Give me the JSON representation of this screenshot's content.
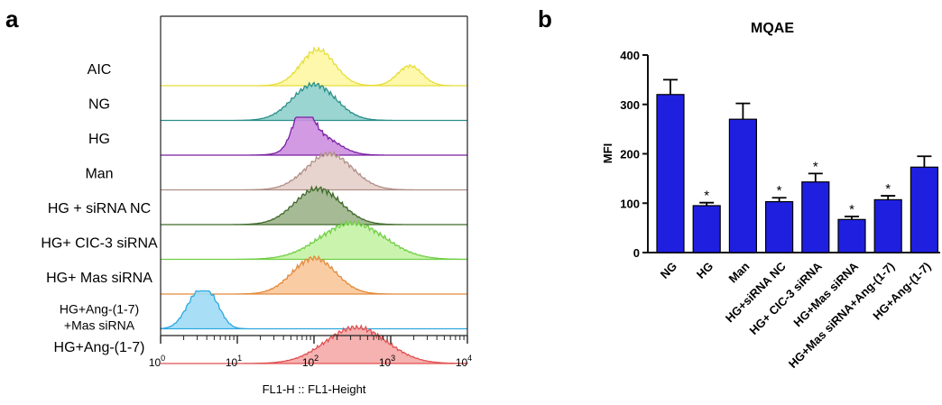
{
  "panel_a": {
    "letter": "a",
    "xlabel": "FL1-H :: FL1-Height",
    "xticks": [
      {
        "base": "10",
        "exp": "0",
        "value": 1
      },
      {
        "base": "10",
        "exp": "1",
        "value": 10
      },
      {
        "base": "10",
        "exp": "2",
        "value": 100
      },
      {
        "base": "10",
        "exp": "3",
        "value": 1000
      },
      {
        "base": "10",
        "exp": "4",
        "value": 10000
      }
    ],
    "samples": [
      {
        "label": "AIC",
        "fill": "#fdf7a2",
        "stroke": "#e6de3a"
      },
      {
        "label": "NG",
        "fill": "#8fd0cd",
        "stroke": "#2a8f8a"
      },
      {
        "label": "HG",
        "fill": "#cc8fe0",
        "stroke": "#7a1fa2"
      },
      {
        "label": "Man",
        "fill": "#e6cfca",
        "stroke": "#b08f88"
      },
      {
        "label": "HG + siRNA NC",
        "fill": "#9cb38a",
        "stroke": "#3f6a2a"
      },
      {
        "label": "HG+ CIC-3 siRNA",
        "fill": "#c4f3a5",
        "stroke": "#70cf45"
      },
      {
        "label": "HG+ Mas siRNA",
        "fill": "#f9c79a",
        "stroke": "#e48a3a"
      },
      {
        "label": "HG+Ang-(1-7)",
        "label2": "+Mas siRNA",
        "fill": "#9fdcf6",
        "stroke": "#2ea8df"
      },
      {
        "label": "HG+Ang-(1-7)",
        "fill": "#f5a8a8",
        "stroke": "#e05050"
      }
    ]
  },
  "panel_b": {
    "letter": "b",
    "chart_data": {
      "type": "bar",
      "title": "MQAE",
      "ylabel": "MFI",
      "ylim": [
        0,
        400
      ],
      "yticks": [
        "0",
        "100",
        "200",
        "300",
        "400"
      ],
      "categories": [
        "NG",
        "HG",
        "Man",
        "HG+siRNA NC",
        "HG+ CIC-3 siRNA",
        "HG+Mas siRNA",
        "HG+Mas siRNA+Ang-(1-7)",
        "HG+Ang-(1-7)"
      ],
      "values": [
        320,
        95,
        270,
        103,
        143,
        67,
        107,
        173
      ],
      "errors": [
        30,
        6,
        32,
        8,
        17,
        6,
        8,
        22
      ],
      "significance": [
        "",
        "*",
        "",
        "*",
        "*",
        "*",
        "*",
        ""
      ],
      "bar_color": "#1f1fe0"
    }
  }
}
